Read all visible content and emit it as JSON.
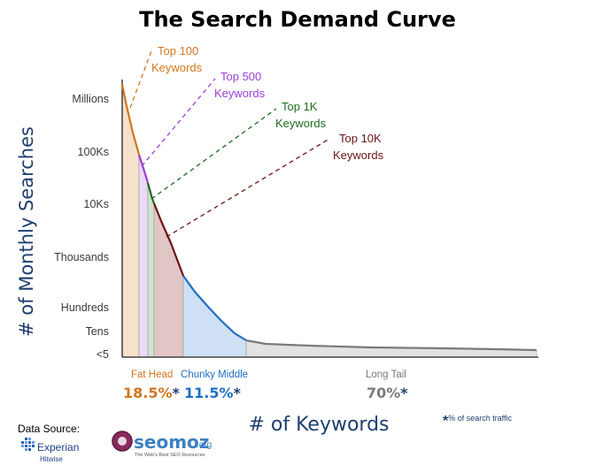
{
  "title": "The Search Demand Curve",
  "ylabel": "# of Monthly Searches",
  "xlabel": "# of Keywords",
  "data_source_label": "Data Source:",
  "logos": {
    "experian": "Experian",
    "hitwise": "Hitwise",
    "seomoz": "seomoz",
    "seomoz_suffix": ".org",
    "seomoz_tagline": "The Web's Best SEO Resources"
  },
  "footnote": {
    "star": "*",
    "text": "% of search traffic"
  },
  "colors": {
    "top100": "#d2761e",
    "top500": "#9b3fd8",
    "top1k": "#1e6b1e",
    "top10k": "#6b1414",
    "chunky": "#1f6fc4",
    "longtail": "#7a7a7a",
    "axis_text": "#3a3a3a"
  },
  "chart_data": {
    "type": "area",
    "yticks": [
      "Millions",
      "100Ks",
      "10Ks",
      "Thousands",
      "Hundreds",
      "Tens",
      "<5"
    ],
    "annotations": [
      {
        "line1": "Top 100",
        "line2": "Keywords"
      },
      {
        "line1": "Top 500",
        "line2": "Keywords"
      },
      {
        "line1": "Top 1K",
        "line2": "Keywords"
      },
      {
        "line1": "Top 10K",
        "line2": "Keywords"
      }
    ],
    "segments": [
      {
        "name": "Fat Head",
        "share": "18.5%",
        "star": "*"
      },
      {
        "name": "Chunky Middle",
        "share": "11.5%",
        "star": "*"
      },
      {
        "name": "Long Tail",
        "share": "70%",
        "star": "*"
      }
    ]
  }
}
